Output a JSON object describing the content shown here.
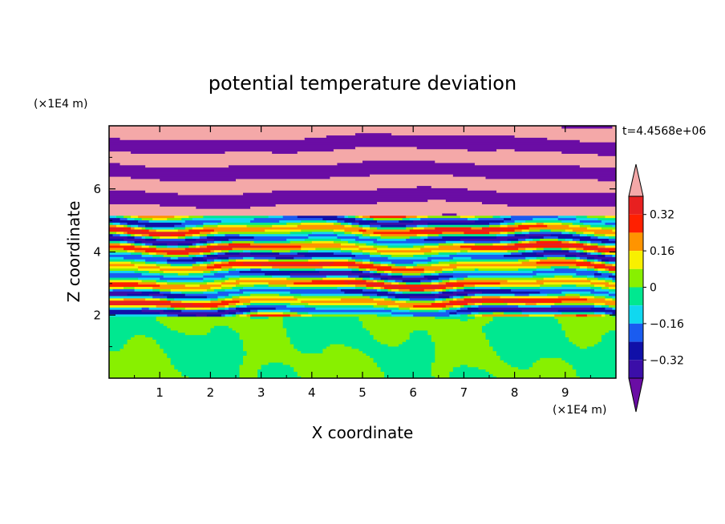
{
  "chart_data": {
    "type": "heatmap",
    "title": "potential temperature deviation",
    "xlabel": "X coordinate",
    "ylabel": "Z coordinate",
    "x_unit_label": "(×1E4 m)",
    "y_unit_label": "(×1E4 m)",
    "time_label": "t=4.4568e+06",
    "xlim": [
      0,
      10
    ],
    "ylim": [
      0,
      8
    ],
    "x_ticks": [
      "1",
      "2",
      "3",
      "4",
      "5",
      "6",
      "7",
      "8",
      "9"
    ],
    "y_ticks": [
      "2",
      "4",
      "6"
    ],
    "colorbar": {
      "labels": [
        "0.32",
        "0.16",
        "0",
        "−0.16",
        "−0.32"
      ],
      "label_levels": [
        0.32,
        0.16,
        0,
        -0.16,
        -0.32
      ],
      "levels": [
        -0.4,
        -0.32,
        -0.24,
        -0.16,
        -0.08,
        0,
        0.08,
        0.16,
        0.24,
        0.32,
        0.4
      ],
      "colors": [
        "#6a0da4",
        "#3b0ea8",
        "#1010a8",
        "#1a5cf0",
        "#10d8f0",
        "#00e890",
        "#88f000",
        "#f8f000",
        "#ff9400",
        "#ff2000",
        "#e82020",
        "#f4a8a8"
      ]
    },
    "layers": {
      "lower_region_top": 2.0,
      "lower_region_colors": [
        "#88f000",
        "#00e890"
      ],
      "turbulent_band": [
        2.0,
        5.2
      ],
      "upper_band": [
        5.2,
        8.0
      ],
      "upper_colors": [
        "#f4a8a8",
        "#6a0da4"
      ]
    }
  }
}
